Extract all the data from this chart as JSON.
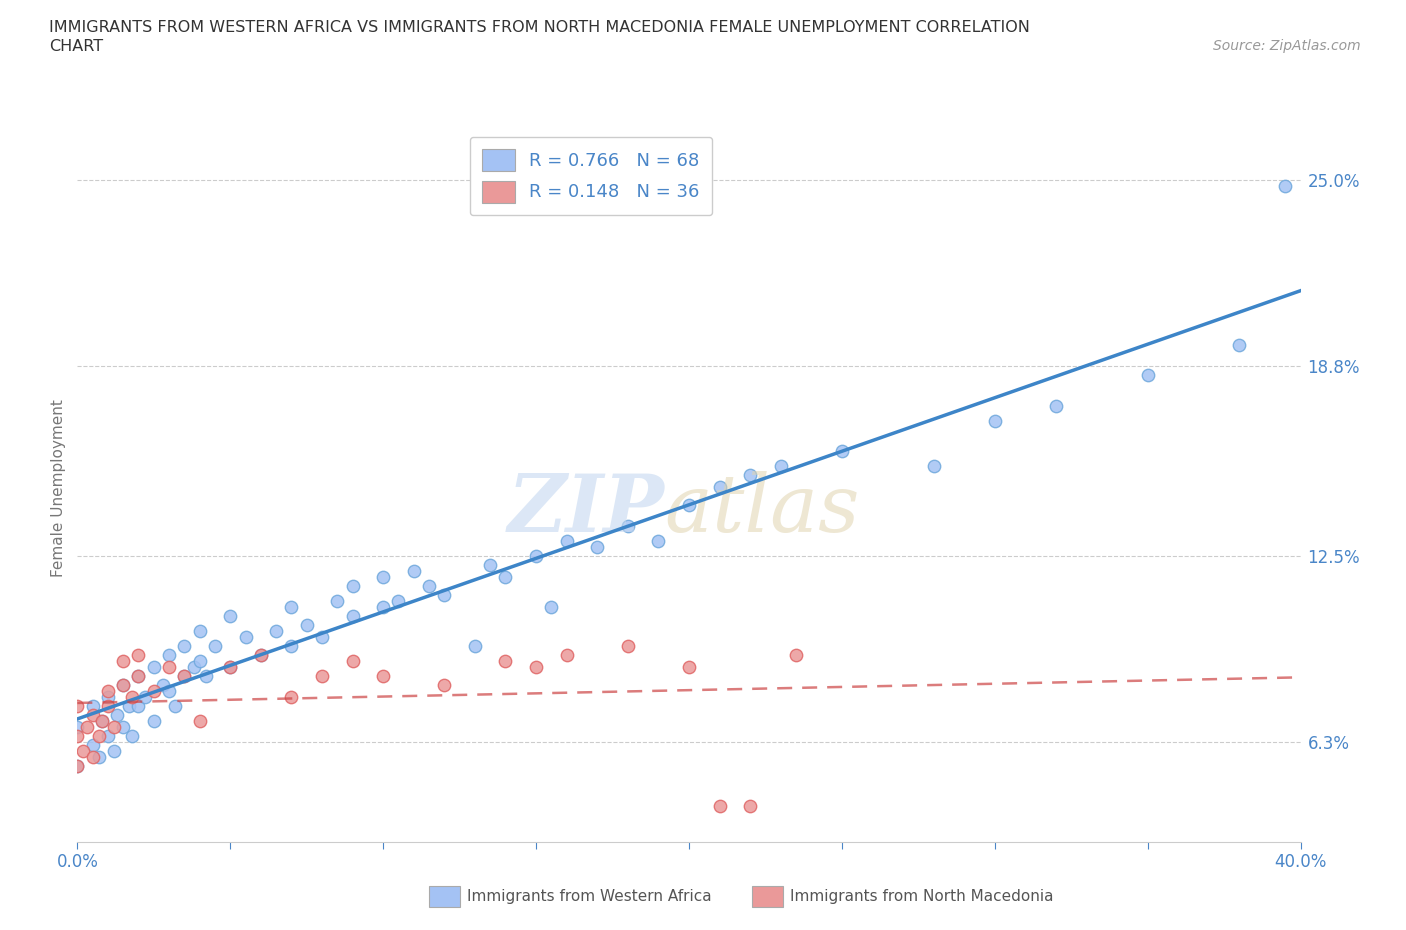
{
  "title_line1": "IMMIGRANTS FROM WESTERN AFRICA VS IMMIGRANTS FROM NORTH MACEDONIA FEMALE UNEMPLOYMENT CORRELATION",
  "title_line2": "CHART",
  "source": "Source: ZipAtlas.com",
  "ylabel": "Female Unemployment",
  "xlim": [
    0.0,
    0.4
  ],
  "ylim": [
    0.03,
    0.265
  ],
  "ytick_right_labels": [
    "25.0%",
    "18.8%",
    "12.5%",
    "6.3%"
  ],
  "ytick_right_values": [
    0.25,
    0.188,
    0.125,
    0.063
  ],
  "R_blue": 0.766,
  "N_blue": 68,
  "R_pink": 0.148,
  "N_pink": 36,
  "blue_color": "#a4c2f4",
  "blue_edge_color": "#6fa8dc",
  "pink_color": "#ea9999",
  "pink_edge_color": "#e06666",
  "blue_line_color": "#3d85c8",
  "pink_line_color": "#cc4444",
  "text_color": "#4a86c8",
  "background_color": "#ffffff",
  "blue_scatter_x": [
    0.0,
    0.0,
    0.005,
    0.005,
    0.007,
    0.008,
    0.01,
    0.01,
    0.012,
    0.013,
    0.015,
    0.015,
    0.017,
    0.018,
    0.02,
    0.02,
    0.022,
    0.025,
    0.025,
    0.028,
    0.03,
    0.03,
    0.032,
    0.035,
    0.035,
    0.038,
    0.04,
    0.04,
    0.042,
    0.045,
    0.05,
    0.05,
    0.055,
    0.06,
    0.065,
    0.07,
    0.07,
    0.075,
    0.08,
    0.085,
    0.09,
    0.09,
    0.1,
    0.1,
    0.105,
    0.11,
    0.115,
    0.12,
    0.13,
    0.135,
    0.14,
    0.15,
    0.155,
    0.16,
    0.17,
    0.18,
    0.19,
    0.2,
    0.21,
    0.22,
    0.23,
    0.25,
    0.28,
    0.3,
    0.32,
    0.35,
    0.38,
    0.395
  ],
  "blue_scatter_y": [
    0.055,
    0.068,
    0.062,
    0.075,
    0.058,
    0.07,
    0.065,
    0.078,
    0.06,
    0.072,
    0.068,
    0.082,
    0.075,
    0.065,
    0.075,
    0.085,
    0.078,
    0.07,
    0.088,
    0.082,
    0.08,
    0.092,
    0.075,
    0.085,
    0.095,
    0.088,
    0.09,
    0.1,
    0.085,
    0.095,
    0.088,
    0.105,
    0.098,
    0.092,
    0.1,
    0.095,
    0.108,
    0.102,
    0.098,
    0.11,
    0.105,
    0.115,
    0.108,
    0.118,
    0.11,
    0.12,
    0.115,
    0.112,
    0.095,
    0.122,
    0.118,
    0.125,
    0.108,
    0.13,
    0.128,
    0.135,
    0.13,
    0.142,
    0.148,
    0.152,
    0.155,
    0.16,
    0.155,
    0.17,
    0.175,
    0.185,
    0.195,
    0.248
  ],
  "pink_scatter_x": [
    0.0,
    0.0,
    0.0,
    0.002,
    0.003,
    0.005,
    0.005,
    0.007,
    0.008,
    0.01,
    0.01,
    0.012,
    0.015,
    0.015,
    0.018,
    0.02,
    0.02,
    0.025,
    0.03,
    0.035,
    0.04,
    0.05,
    0.06,
    0.07,
    0.08,
    0.09,
    0.1,
    0.12,
    0.14,
    0.15,
    0.16,
    0.18,
    0.2,
    0.21,
    0.22,
    0.235
  ],
  "pink_scatter_y": [
    0.055,
    0.065,
    0.075,
    0.06,
    0.068,
    0.058,
    0.072,
    0.065,
    0.07,
    0.075,
    0.08,
    0.068,
    0.082,
    0.09,
    0.078,
    0.085,
    0.092,
    0.08,
    0.088,
    0.085,
    0.07,
    0.088,
    0.092,
    0.078,
    0.085,
    0.09,
    0.085,
    0.082,
    0.09,
    0.088,
    0.092,
    0.095,
    0.088,
    0.042,
    0.042,
    0.092
  ]
}
